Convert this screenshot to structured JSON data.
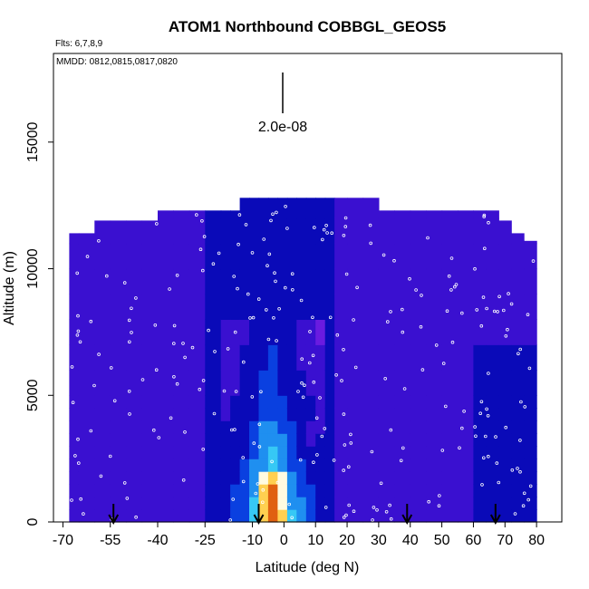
{
  "chart_data": {
    "type": "heatmap",
    "title": "ATOM1 Northbound COBBGL_GEOS5",
    "flights_note": "Flts: 6,7,8,9",
    "dates_note": "MMDD: 0812,0815,0817,0820",
    "xlabel": "Latitude (deg N)",
    "ylabel": "Altitude (m)",
    "xlim": [
      -73,
      88
    ],
    "ylim": [
      0,
      18500
    ],
    "x_ticks": [
      -70,
      -55,
      -40,
      -25,
      -10,
      0,
      10,
      20,
      30,
      40,
      50,
      60,
      70,
      80
    ],
    "y_ticks": [
      0,
      5000,
      10000,
      15000
    ],
    "scale_bar_label": "2.0e-08",
    "grid": false,
    "color_scale": [
      "#6a1be0",
      "#3a10d0",
      "#0a0ab8",
      "#0a40e0",
      "#1f8ff0",
      "#36c8f5",
      "#a8f0ff",
      "#fffbe0",
      "#ffd050",
      "#e06010",
      "#c00000"
    ],
    "field": {
      "x_edges": [
        -68,
        -65,
        -60,
        -55,
        -50,
        -45,
        -40,
        -35,
        -30,
        -25,
        -20,
        -17,
        -14,
        -11,
        -8,
        -5,
        -2,
        1,
        4,
        7,
        10,
        13,
        16,
        20,
        25,
        30,
        35,
        40,
        45,
        50,
        55,
        60,
        64,
        68,
        72,
        76,
        80
      ],
      "top_altitude": [
        11400,
        11400,
        11900,
        11900,
        11900,
        11900,
        12300,
        12300,
        12300,
        12300,
        12300,
        12300,
        12800,
        12800,
        12800,
        12800,
        12800,
        12800,
        12800,
        12800,
        12800,
        12800,
        12800,
        12800,
        12800,
        12300,
        12300,
        12300,
        12300,
        12300,
        12300,
        12300,
        12300,
        11900,
        11400,
        11100
      ],
      "levels_m": [
        0,
        500,
        1000,
        1500,
        2000,
        2500,
        3000,
        3500,
        4000,
        4500,
        5000,
        6000,
        7000,
        8000,
        9000,
        10000,
        11000,
        12000,
        13000
      ],
      "values_level_index_0_based": "intensity index 0..10 per [column][level]"
    },
    "markers": {
      "arrows_at_latitude": [
        -54,
        -8,
        39,
        67
      ]
    }
  }
}
